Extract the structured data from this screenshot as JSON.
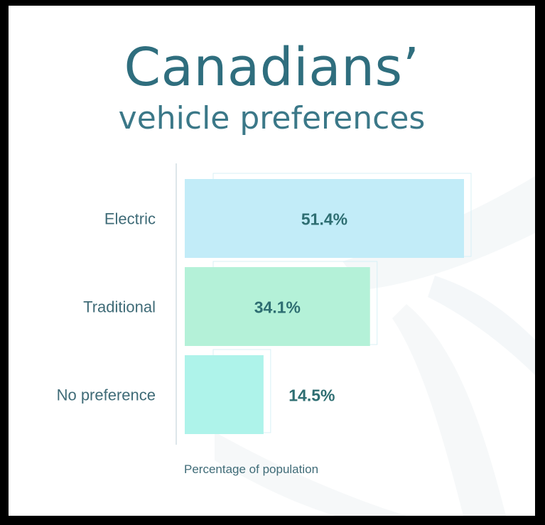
{
  "chart_data": {
    "type": "bar",
    "orientation": "horizontal",
    "title": "Canadians’",
    "subtitle": "vehicle preferences",
    "categories": [
      "Electric",
      "Traditional",
      "No preference"
    ],
    "values": [
      51.4,
      34.1,
      14.5
    ],
    "value_labels": [
      "51.4%",
      "34.1%",
      "14.5%"
    ],
    "xlabel": "Percentage of population",
    "ylabel": "",
    "xlim": [
      0,
      51.4
    ],
    "grid": false,
    "legend": "none",
    "colors": [
      "#c2ecf8",
      "#b4f1d8",
      "#aef3ea"
    ]
  },
  "theme": {
    "text_color": "#2f6e7e",
    "value_color": "#2e6e72",
    "frame_color": "#000000",
    "background_color": "#ffffff"
  }
}
